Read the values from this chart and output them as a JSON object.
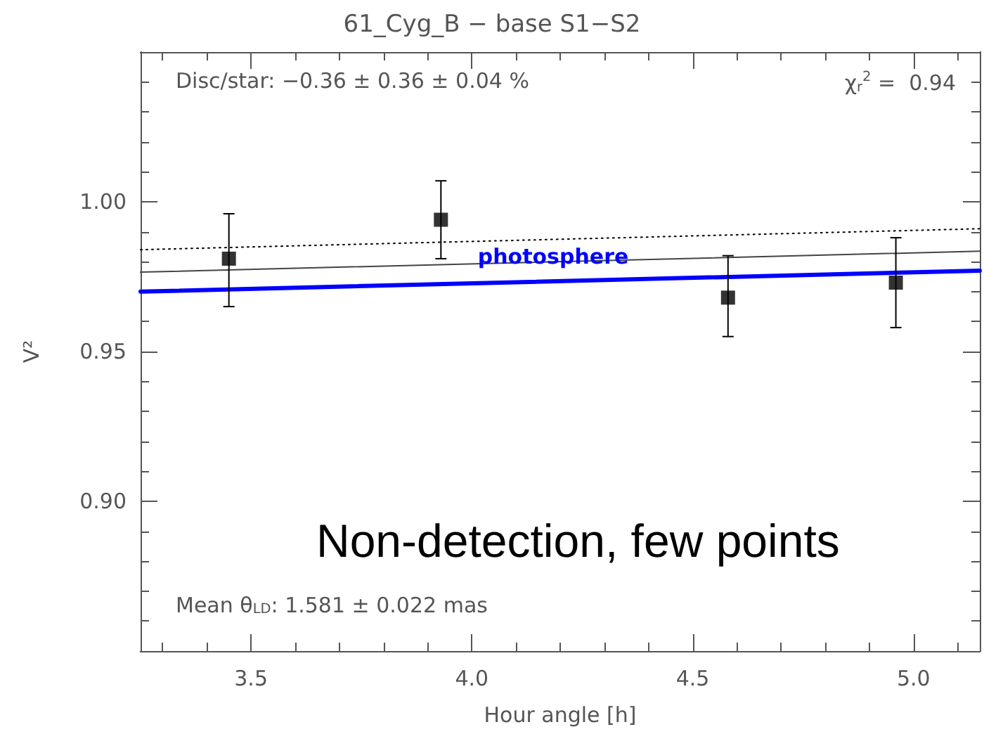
{
  "chart_data": {
    "type": "scatter",
    "title": "61_Cyg_B − base S1−S2",
    "xlabel": "Hour angle [h]",
    "ylabel": "V²",
    "annotations": [
      "Disc/star: −0.36 ± 0.36 ± 0.04 %",
      "χ$_{r}$$^{2}$ =  0.94",
      "Mean θ$_{LD}$: 1.581 ± 0.022 mas",
      "Non-detection, few points"
    ],
    "series": [
      {
        "type": "line",
        "color": "#000000",
        "line_style": "dotted",
        "x": [
          3.25,
          5.15
        ],
        "values": [
          0.984,
          0.991
        ]
      },
      {
        "type": "line",
        "color": "#444444",
        "line_style": "solid",
        "x": [
          3.25,
          5.15
        ],
        "values": [
          0.9765,
          0.9835
        ]
      },
      {
        "type": "line",
        "name": "photosphere",
        "color": "#0000ff",
        "line_style": "solid",
        "x": [
          3.25,
          5.15
        ],
        "values": [
          0.97,
          0.977
        ]
      },
      {
        "color": "#000000",
        "marker": "square",
        "x": [
          3.45,
          3.93,
          4.58,
          4.96
        ],
        "values": [
          0.981,
          0.994,
          0.968,
          0.973
        ],
        "errors": [
          [
            0.965,
            0.996
          ],
          [
            0.981,
            1.007
          ],
          [
            0.955,
            0.982
          ],
          [
            0.958,
            0.988
          ]
        ]
      }
    ],
    "xlim": [
      3.25,
      5.15
    ],
    "xticks": [
      {
        "value": 3.5,
        "label": "3.5"
      },
      {
        "value": 4.0,
        "label": "4.0"
      },
      {
        "value": 4.5,
        "label": "4.5"
      },
      {
        "value": 5.0,
        "label": "5.0"
      }
    ],
    "ylim": [
      0.85,
      1.05
    ],
    "yticks": [
      {
        "value": 0.9,
        "label": "0.90"
      },
      {
        "value": 0.95,
        "label": "0.95"
      },
      {
        "value": 1.0,
        "label": "1.00"
      }
    ],
    "grid": false,
    "legend": false
  }
}
